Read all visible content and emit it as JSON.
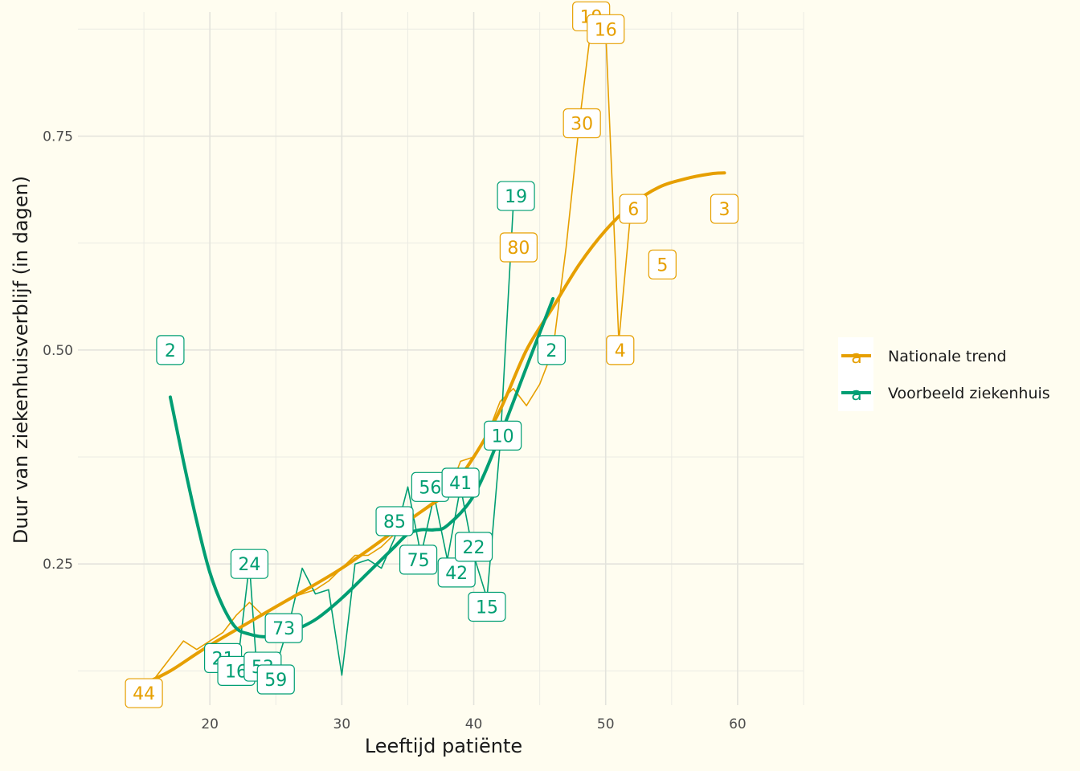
{
  "chart_data": {
    "type": "line",
    "xlabel": "Leeftijd patiënte",
    "ylabel": "Duur van ziekenhuisverblijf (in dagen)",
    "xlim": [
      10,
      65
    ],
    "ylim": [
      0.085,
      0.895
    ],
    "x_ticks": [
      20,
      30,
      40,
      50,
      60
    ],
    "y_ticks": [
      0.25,
      0.5,
      0.75
    ],
    "x_ticks_labels": [
      "20",
      "30",
      "40",
      "50",
      "60"
    ],
    "y_ticks_labels": [
      "0.25",
      "0.50",
      "0.75"
    ],
    "grid": true,
    "legend_position": "right",
    "series": [
      {
        "name": "Nationale trend",
        "color": "#E69F00",
        "raw": {
          "x": [
            15,
            16,
            17,
            18,
            19,
            20,
            21,
            22,
            23,
            24,
            25,
            26,
            27,
            28,
            29,
            30,
            31,
            32,
            33,
            34,
            35,
            36,
            37,
            38,
            39,
            40,
            41,
            42,
            43,
            44,
            45,
            46,
            47,
            48,
            49,
            50,
            51,
            52
          ],
          "y": [
            0.099,
            0.12,
            0.14,
            0.16,
            0.15,
            0.16,
            0.17,
            0.19,
            0.205,
            0.19,
            0.2,
            0.21,
            0.215,
            0.22,
            0.23,
            0.245,
            0.26,
            0.26,
            0.27,
            0.285,
            0.3,
            0.31,
            0.32,
            0.33,
            0.37,
            0.375,
            0.4,
            0.44,
            0.455,
            0.435,
            0.46,
            0.5,
            0.62,
            0.765,
            0.89,
            0.875,
            0.51,
            0.68
          ]
        },
        "smooth": {
          "x": [
            15,
            17,
            20,
            25,
            30,
            35,
            38,
            40,
            42,
            44,
            46,
            48,
            50,
            52,
            54,
            56,
            58,
            59
          ],
          "y": [
            0.11,
            0.125,
            0.155,
            0.2,
            0.245,
            0.3,
            0.335,
            0.375,
            0.43,
            0.5,
            0.55,
            0.6,
            0.64,
            0.67,
            0.69,
            0.7,
            0.706,
            0.707
          ]
        },
        "labels": [
          {
            "x": 15,
            "y": 0.099,
            "text": "44"
          },
          {
            "x": 43.4,
            "y": 0.62,
            "text": "80"
          },
          {
            "x": 48.2,
            "y": 0.765,
            "text": "30"
          },
          {
            "x": 48.9,
            "y": 0.89,
            "text": "19"
          },
          {
            "x": 50,
            "y": 0.875,
            "text": "16"
          },
          {
            "x": 51.1,
            "y": 0.5,
            "text": "4"
          },
          {
            "x": 52.1,
            "y": 0.665,
            "text": "6"
          },
          {
            "x": 54.3,
            "y": 0.6,
            "text": "5"
          },
          {
            "x": 59,
            "y": 0.665,
            "text": "3"
          }
        ]
      },
      {
        "name": "Voorbeeld ziekenhuis",
        "color": "#009E73",
        "raw": {
          "x": [
            21,
            22,
            23,
            23.5,
            24,
            25,
            26,
            27,
            28,
            29,
            30,
            31,
            32,
            33,
            34,
            35,
            36,
            37,
            38,
            39,
            40,
            41,
            42,
            43
          ],
          "y": [
            0.13,
            0.12,
            0.25,
            0.14,
            0.135,
            0.13,
            0.18,
            0.245,
            0.215,
            0.22,
            0.12,
            0.25,
            0.255,
            0.245,
            0.28,
            0.34,
            0.26,
            0.33,
            0.255,
            0.34,
            0.26,
            0.21,
            0.39,
            0.67
          ]
        },
        "smooth": {
          "x": [
            17,
            18,
            19,
            20,
            21,
            22,
            23,
            24,
            25,
            26,
            28,
            30,
            32,
            34,
            35,
            36,
            37,
            38,
            40,
            42,
            44,
            46
          ],
          "y": [
            0.445,
            0.37,
            0.3,
            0.24,
            0.2,
            0.175,
            0.168,
            0.165,
            0.166,
            0.17,
            0.185,
            0.21,
            0.24,
            0.27,
            0.285,
            0.29,
            0.29,
            0.295,
            0.33,
            0.4,
            0.48,
            0.56
          ]
        },
        "labels": [
          {
            "x": 17,
            "y": 0.5,
            "text": "2"
          },
          {
            "x": 21,
            "y": 0.14,
            "text": "21"
          },
          {
            "x": 22,
            "y": 0.125,
            "text": "16"
          },
          {
            "x": 23,
            "y": 0.25,
            "text": "24"
          },
          {
            "x": 24,
            "y": 0.13,
            "text": "53"
          },
          {
            "x": 25,
            "y": 0.115,
            "text": "59"
          },
          {
            "x": 25.6,
            "y": 0.175,
            "text": "73"
          },
          {
            "x": 34,
            "y": 0.3,
            "text": "85"
          },
          {
            "x": 35.8,
            "y": 0.255,
            "text": "75"
          },
          {
            "x": 36.7,
            "y": 0.34,
            "text": "56"
          },
          {
            "x": 38.7,
            "y": 0.24,
            "text": "42"
          },
          {
            "x": 39,
            "y": 0.345,
            "text": "41"
          },
          {
            "x": 40,
            "y": 0.27,
            "text": "22"
          },
          {
            "x": 41,
            "y": 0.2,
            "text": "15"
          },
          {
            "x": 42.2,
            "y": 0.4,
            "text": "10"
          },
          {
            "x": 43.2,
            "y": 0.68,
            "text": "19"
          },
          {
            "x": 45.9,
            "y": 0.5,
            "text": "2"
          }
        ]
      }
    ]
  }
}
